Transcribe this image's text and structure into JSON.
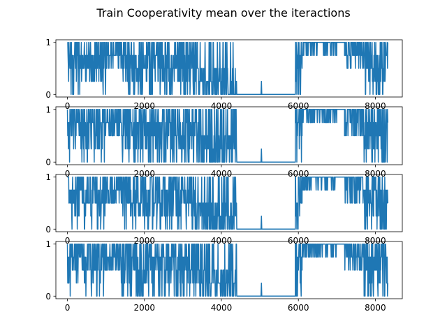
{
  "figure_title": "Train Cooperativity mean over the iteractions",
  "colors": {
    "series": "#1f77b4",
    "axes": "#000000",
    "background": "#ffffff"
  },
  "chart_data": [
    {
      "type": "line",
      "xlabel": "",
      "ylabel": "",
      "xlim": [
        -300,
        8700
      ],
      "ylim": [
        -0.05,
        1.05
      ],
      "xticks": [
        0,
        2000,
        4000,
        6000,
        8000
      ],
      "yticks": [
        0,
        1
      ],
      "grid": false,
      "segments": [
        {
          "x": [
            0,
            1000
          ],
          "mode": "noise",
          "levels": [
            1,
            0.75,
            0.5,
            0.25,
            0
          ],
          "weights": [
            5,
            4,
            4,
            2,
            1
          ]
        },
        {
          "x": [
            1000,
            1400
          ],
          "mode": "noise",
          "levels": [
            1,
            0.75,
            0.5
          ],
          "weights": [
            4,
            4,
            3
          ]
        },
        {
          "x": [
            1400,
            3400
          ],
          "mode": "noise",
          "levels": [
            1,
            0.75,
            0.5,
            0.25,
            0
          ],
          "weights": [
            4,
            3,
            3,
            2,
            2
          ]
        },
        {
          "x": [
            3400,
            4400
          ],
          "mode": "noise",
          "levels": [
            1,
            0.5,
            0.25,
            0
          ],
          "weights": [
            2,
            3,
            3,
            4
          ]
        },
        {
          "x": [
            4400,
            5030
          ],
          "mode": "flat",
          "level": 0
        },
        {
          "x": [
            5030,
            5050
          ],
          "mode": "spike",
          "level": 0.25
        },
        {
          "x": [
            5050,
            5920
          ],
          "mode": "flat",
          "level": 0
        },
        {
          "x": [
            5920,
            6100
          ],
          "mode": "noise",
          "levels": [
            1,
            0.75,
            0.5,
            0.25,
            0
          ],
          "weights": [
            3,
            3,
            2,
            1,
            1
          ]
        },
        {
          "x": [
            6100,
            7000
          ],
          "mode": "noise",
          "levels": [
            1,
            0.75
          ],
          "weights": [
            6,
            2
          ]
        },
        {
          "x": [
            7000,
            7200
          ],
          "mode": "flat",
          "level": 1
        },
        {
          "x": [
            7200,
            7700
          ],
          "mode": "noise",
          "levels": [
            1,
            0.75,
            0.5
          ],
          "weights": [
            5,
            3,
            2
          ]
        },
        {
          "x": [
            7700,
            8330
          ],
          "mode": "noise",
          "levels": [
            1,
            0.75,
            0.5,
            0.25,
            0
          ],
          "weights": [
            4,
            3,
            3,
            2,
            2
          ]
        }
      ]
    },
    {
      "type": "line",
      "xlabel": "",
      "ylabel": "",
      "xlim": [
        -300,
        8700
      ],
      "ylim": [
        -0.05,
        1.05
      ],
      "xticks": [
        0,
        2000,
        4000,
        6000,
        8000
      ],
      "yticks": [
        0,
        1
      ],
      "grid": false,
      "segments": "same-as-panel-1"
    },
    {
      "type": "line",
      "xlabel": "",
      "ylabel": "",
      "xlim": [
        -300,
        8700
      ],
      "ylim": [
        -0.05,
        1.05
      ],
      "xticks": [
        0,
        2000,
        4000,
        6000,
        8000
      ],
      "yticks": [
        0,
        1
      ],
      "grid": false,
      "segments": "same-as-panel-1"
    },
    {
      "type": "line",
      "xlabel": "",
      "ylabel": "",
      "xlim": [
        -300,
        8700
      ],
      "ylim": [
        -0.05,
        1.05
      ],
      "xticks": [
        0,
        2000,
        4000,
        6000,
        8000
      ],
      "yticks": [
        0,
        1
      ],
      "grid": false,
      "segments": "same-as-panel-1"
    }
  ]
}
